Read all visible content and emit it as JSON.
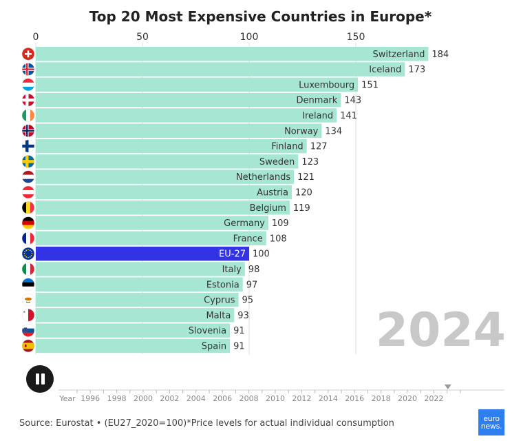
{
  "title": "Top 20 Most Expensive Countries in Europe*",
  "year": "2024",
  "source": "Source: Eurostat • (EU27_2020=100)*Price levels for actual individual consumption",
  "logo": {
    "line1": "euro",
    "line2": "news."
  },
  "controls": {
    "play_state_icon": "pause-icon"
  },
  "timeline": {
    "axis_label": "Year",
    "labels": [
      "1996",
      "1998",
      "2000",
      "2002",
      "2004",
      "2006",
      "2008",
      "2010",
      "2012",
      "2014",
      "2016",
      "2018",
      "2020",
      "2022"
    ],
    "start_year": 1995,
    "end_year": 2024,
    "current_year": 2024
  },
  "colors": {
    "bar": "#a6e6d3",
    "highlight": "#3333e6",
    "grid": "#dcdcdc"
  },
  "chart_data": {
    "type": "bar",
    "orientation": "horizontal",
    "title": "Top 20 Most Expensive Countries in Europe*",
    "xlim": [
      0,
      190
    ],
    "xticks": [
      0,
      50,
      100,
      150
    ],
    "x_axis_position": "top",
    "grid": true,
    "highlight": "EU-27",
    "categories": [
      "Switzerland",
      "Iceland",
      "Luxembourg",
      "Denmark",
      "Ireland",
      "Norway",
      "Finland",
      "Sweden",
      "Netherlands",
      "Austria",
      "Belgium",
      "Germany",
      "France",
      "EU-27",
      "Italy",
      "Estonia",
      "Cyprus",
      "Malta",
      "Slovenia",
      "Spain"
    ],
    "values": [
      184,
      173,
      151,
      143,
      141,
      134,
      127,
      123,
      121,
      120,
      119,
      109,
      108,
      100,
      98,
      97,
      95,
      93,
      91,
      91
    ],
    "flags": [
      "switzerland-flag-icon",
      "iceland-flag-icon",
      "luxembourg-flag-icon",
      "denmark-flag-icon",
      "ireland-flag-icon",
      "norway-flag-icon",
      "finland-flag-icon",
      "sweden-flag-icon",
      "netherlands-flag-icon",
      "austria-flag-icon",
      "belgium-flag-icon",
      "germany-flag-icon",
      "france-flag-icon",
      "eu-flag-icon",
      "italy-flag-icon",
      "estonia-flag-icon",
      "cyprus-flag-icon",
      "malta-flag-icon",
      "slovenia-flag-icon",
      "spain-flag-icon"
    ]
  }
}
